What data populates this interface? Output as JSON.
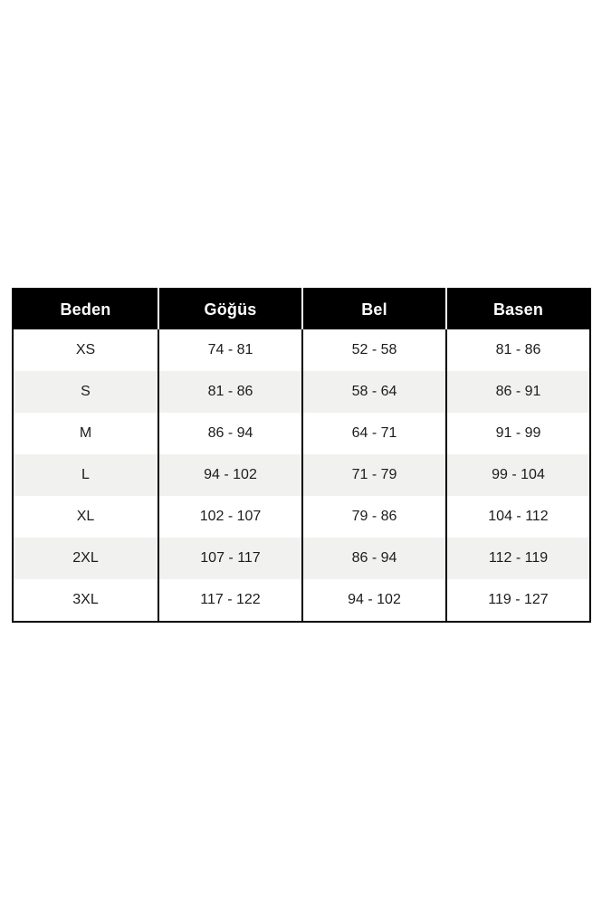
{
  "colors": {
    "page_bg": "#ffffff",
    "header_bg": "#000000",
    "header_text": "#ffffff",
    "header_divider": "#ffffff",
    "border": "#000000",
    "cell_text": "#1c1c1c",
    "row_alt_bg": "#f1f1ef"
  },
  "chart_data": {
    "type": "table",
    "title": "",
    "columns": [
      "Beden",
      "Göğüs",
      "Bel",
      "Basen"
    ],
    "rows": [
      [
        "XS",
        "74 - 81",
        "52 - 58",
        "81 - 86"
      ],
      [
        "S",
        "81 - 86",
        "58 - 64",
        "86 - 91"
      ],
      [
        "M",
        "86 - 94",
        "64 - 71",
        "91 - 99"
      ],
      [
        "L",
        "94 - 102",
        "71 - 79",
        "99 - 104"
      ],
      [
        "XL",
        "102 - 107",
        "79 - 86",
        "104 - 112"
      ],
      [
        "2XL",
        "107 - 117",
        "86 - 94",
        "112 - 119"
      ],
      [
        "3XL",
        "117 - 122",
        "94 - 102",
        "119 - 127"
      ]
    ]
  }
}
